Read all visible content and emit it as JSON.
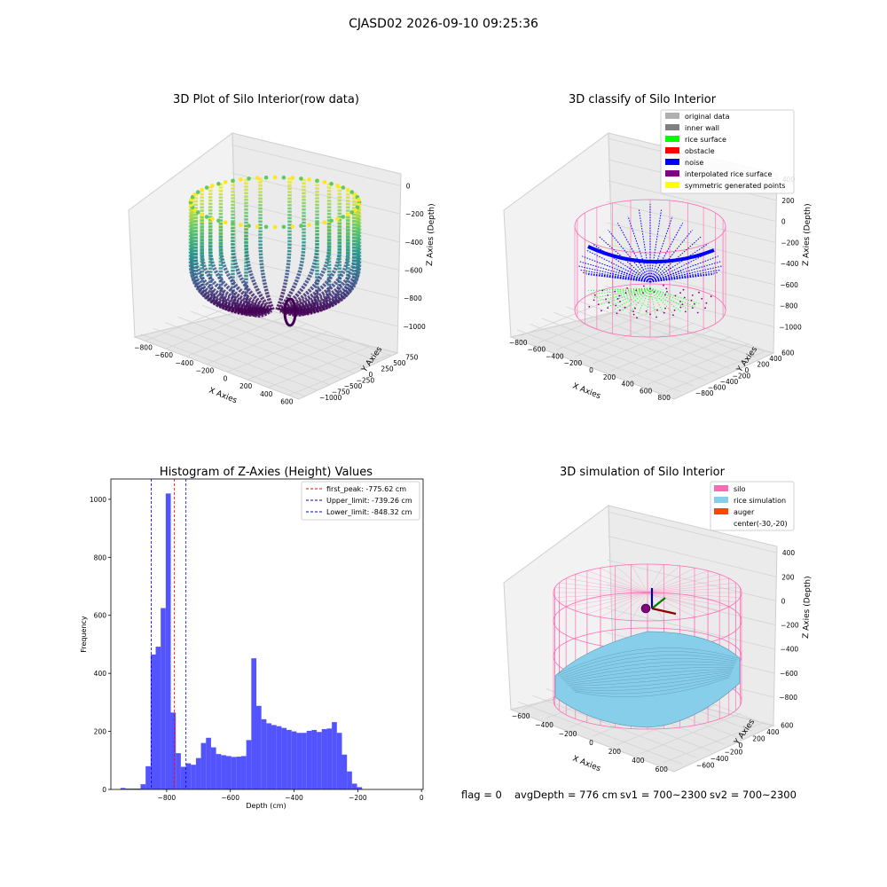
{
  "suptitle": "CJASD02 2026-09-10 09:25:36",
  "footer": {
    "flag": "flag = 0",
    "avg": "avgDepth = 776 cm",
    "sv1": "sv1 = 700~2300",
    "sv2": "sv2 = 700~2300"
  },
  "colors": {
    "hist_bar": "#4b4bff",
    "peak_line": "#ff0000",
    "limit_line": "#0000cc",
    "silo": "#ff69b4",
    "rice": "#87ceeb",
    "auger": "#ff4500",
    "noise": "#0000ff",
    "rice_surface": "#00ff00",
    "pane": "#f2f2f2",
    "grid": "#d0d0d0"
  },
  "chart_data": [
    {
      "type": "scatter3d",
      "title": "3D Plot of Silo Interior(row data)",
      "xlabel": "X Axies",
      "ylabel": "Y Axies",
      "zlabel": "Z Axies (Depth)",
      "xticks": [
        "−800",
        "−600",
        "−400",
        "−200",
        "0",
        "200",
        "400",
        "600"
      ],
      "yticks": [
        "−1000",
        "−750",
        "−500",
        "−250",
        "0",
        "250",
        "500",
        "750"
      ],
      "zticks": [
        "0",
        "−200",
        "−400",
        "−600",
        "−800",
        "−1000"
      ],
      "colormap": "viridis"
    },
    {
      "type": "scatter3d",
      "title": "3D classify of Silo Interior",
      "xlabel": "X Axies",
      "ylabel": "Y Axies",
      "zlabel": "Z Axies (Depth)",
      "xticks": [
        "−800",
        "−600",
        "−400",
        "−200",
        "0",
        "200",
        "400",
        "600",
        "800"
      ],
      "yticks": [
        "−800",
        "−600",
        "−400",
        "−200",
        "0",
        "200",
        "400",
        "600"
      ],
      "zticks": [
        "400",
        "200",
        "0",
        "−200",
        "−400",
        "−600",
        "−800",
        "−1000"
      ],
      "legend_position": "top-right",
      "legend": [
        {
          "label": "original data",
          "color": "#b0b0b0"
        },
        {
          "label": "inner wall",
          "color": "#808080"
        },
        {
          "label": "rice surface",
          "color": "#00ff00"
        },
        {
          "label": "obstacle",
          "color": "#ff0000"
        },
        {
          "label": "noise",
          "color": "#0000ff"
        },
        {
          "label": "interpolated rice surface",
          "color": "#800080"
        },
        {
          "label": "symmetric generated points",
          "color": "#ffff00"
        }
      ]
    },
    {
      "type": "bar",
      "title": "Histogram of Z-Axies (Height) Values",
      "xlabel": "Depth (cm)",
      "ylabel": "Frequency",
      "xlim": [
        -975,
        5
      ],
      "ylim": [
        0,
        1070
      ],
      "xticks": [
        -800,
        -600,
        -400,
        -200,
        0
      ],
      "yticks": [
        0,
        200,
        400,
        600,
        800,
        1000
      ],
      "xtick_labels": [
        "−800",
        "−600",
        "−400",
        "−200",
        "0"
      ],
      "ytick_labels": [
        "0",
        "200",
        "400",
        "600",
        "800",
        "1000"
      ],
      "bin_start": -945,
      "bin_width": 15.8,
      "values": [
        5,
        3,
        3,
        3,
        18,
        80,
        465,
        492,
        625,
        1020,
        265,
        125,
        78,
        90,
        85,
        108,
        160,
        178,
        145,
        122,
        118,
        115,
        112,
        113,
        115,
        170,
        452,
        288,
        242,
        228,
        222,
        218,
        212,
        205,
        200,
        195,
        195,
        202,
        205,
        198,
        208,
        210,
        232,
        195,
        120,
        62,
        20,
        8
      ],
      "vlines": [
        {
          "x": -775.62,
          "label": "first_peak: -775.62 cm",
          "color": "#ff0000"
        },
        {
          "x": -739.26,
          "label": "Upper_limit: -739.26 cm",
          "color": "#0000cc"
        },
        {
          "x": -848.32,
          "label": "Lower_limit: -848.32 cm",
          "color": "#0000cc"
        }
      ],
      "legend_position": "top-right"
    },
    {
      "type": "surface3d",
      "title": "3D simulation of Silo Interior",
      "xlabel": "X Axies",
      "ylabel": "Y Axies",
      "zlabel": "Z Axies (Depth)",
      "xticks": [
        "−600",
        "−400",
        "−200",
        "0",
        "200",
        "400",
        "600"
      ],
      "yticks": [
        "−600",
        "−400",
        "−200",
        "0",
        "200",
        "400",
        "600"
      ],
      "zticks": [
        "400",
        "200",
        "0",
        "−200",
        "−400",
        "−600",
        "−800"
      ],
      "legend_position": "top-right",
      "legend": [
        {
          "label": "silo",
          "color": "#ff69b4"
        },
        {
          "label": "rice simulation",
          "color": "#87ceeb"
        },
        {
          "label": "auger",
          "color": "#ff4500"
        },
        {
          "label": "center(-30,-20)",
          "color": ""
        }
      ]
    }
  ]
}
